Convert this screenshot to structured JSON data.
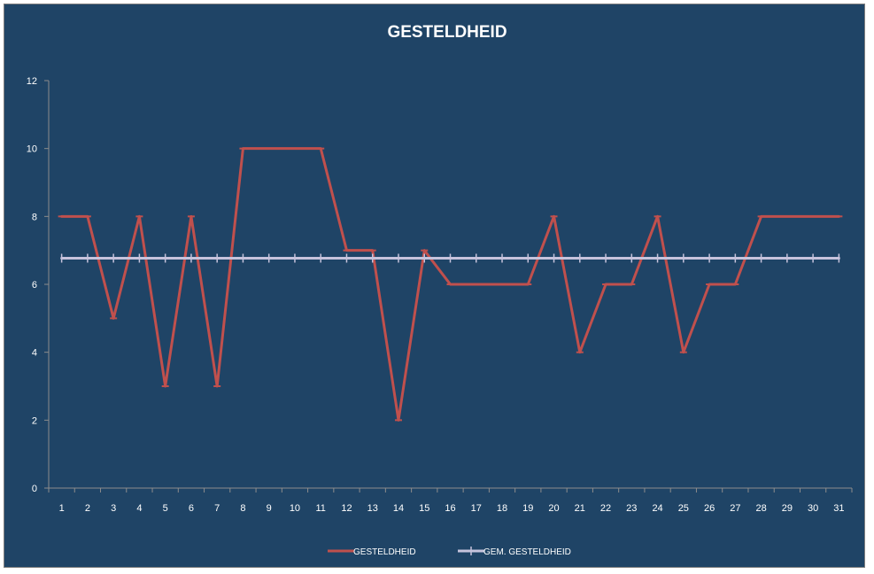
{
  "chart_data": {
    "type": "line",
    "title": "GESTELDHEID",
    "xlabel": "",
    "ylabel": "",
    "x": [
      1,
      2,
      3,
      4,
      5,
      6,
      7,
      8,
      9,
      10,
      11,
      12,
      13,
      14,
      15,
      16,
      17,
      18,
      19,
      20,
      21,
      22,
      23,
      24,
      25,
      26,
      27,
      28,
      29,
      30,
      31
    ],
    "ylim": [
      0,
      12
    ],
    "yticks": [
      0,
      2,
      4,
      6,
      8,
      10,
      12
    ],
    "grid": false,
    "legend_position": "bottom",
    "series": [
      {
        "name": "GESTELDHEID",
        "color": "#c0504d",
        "values": [
          8,
          8,
          5,
          8,
          3,
          8,
          3,
          10,
          10,
          10,
          10,
          7,
          7,
          2,
          7,
          6,
          6,
          6,
          6,
          8,
          4,
          6,
          6,
          8,
          4,
          6,
          6,
          8,
          8,
          8,
          8
        ]
      },
      {
        "name": "GEM. GESTELDHEID",
        "color": "#c6c3dc",
        "values": [
          6.77,
          6.77,
          6.77,
          6.77,
          6.77,
          6.77,
          6.77,
          6.77,
          6.77,
          6.77,
          6.77,
          6.77,
          6.77,
          6.77,
          6.77,
          6.77,
          6.77,
          6.77,
          6.77,
          6.77,
          6.77,
          6.77,
          6.77,
          6.77,
          6.77,
          6.77,
          6.77,
          6.77,
          6.77,
          6.77,
          6.77
        ]
      }
    ]
  },
  "colors": {
    "background": "#1f4466",
    "axis": "#8c8c8c",
    "text": "#ffffff"
  }
}
